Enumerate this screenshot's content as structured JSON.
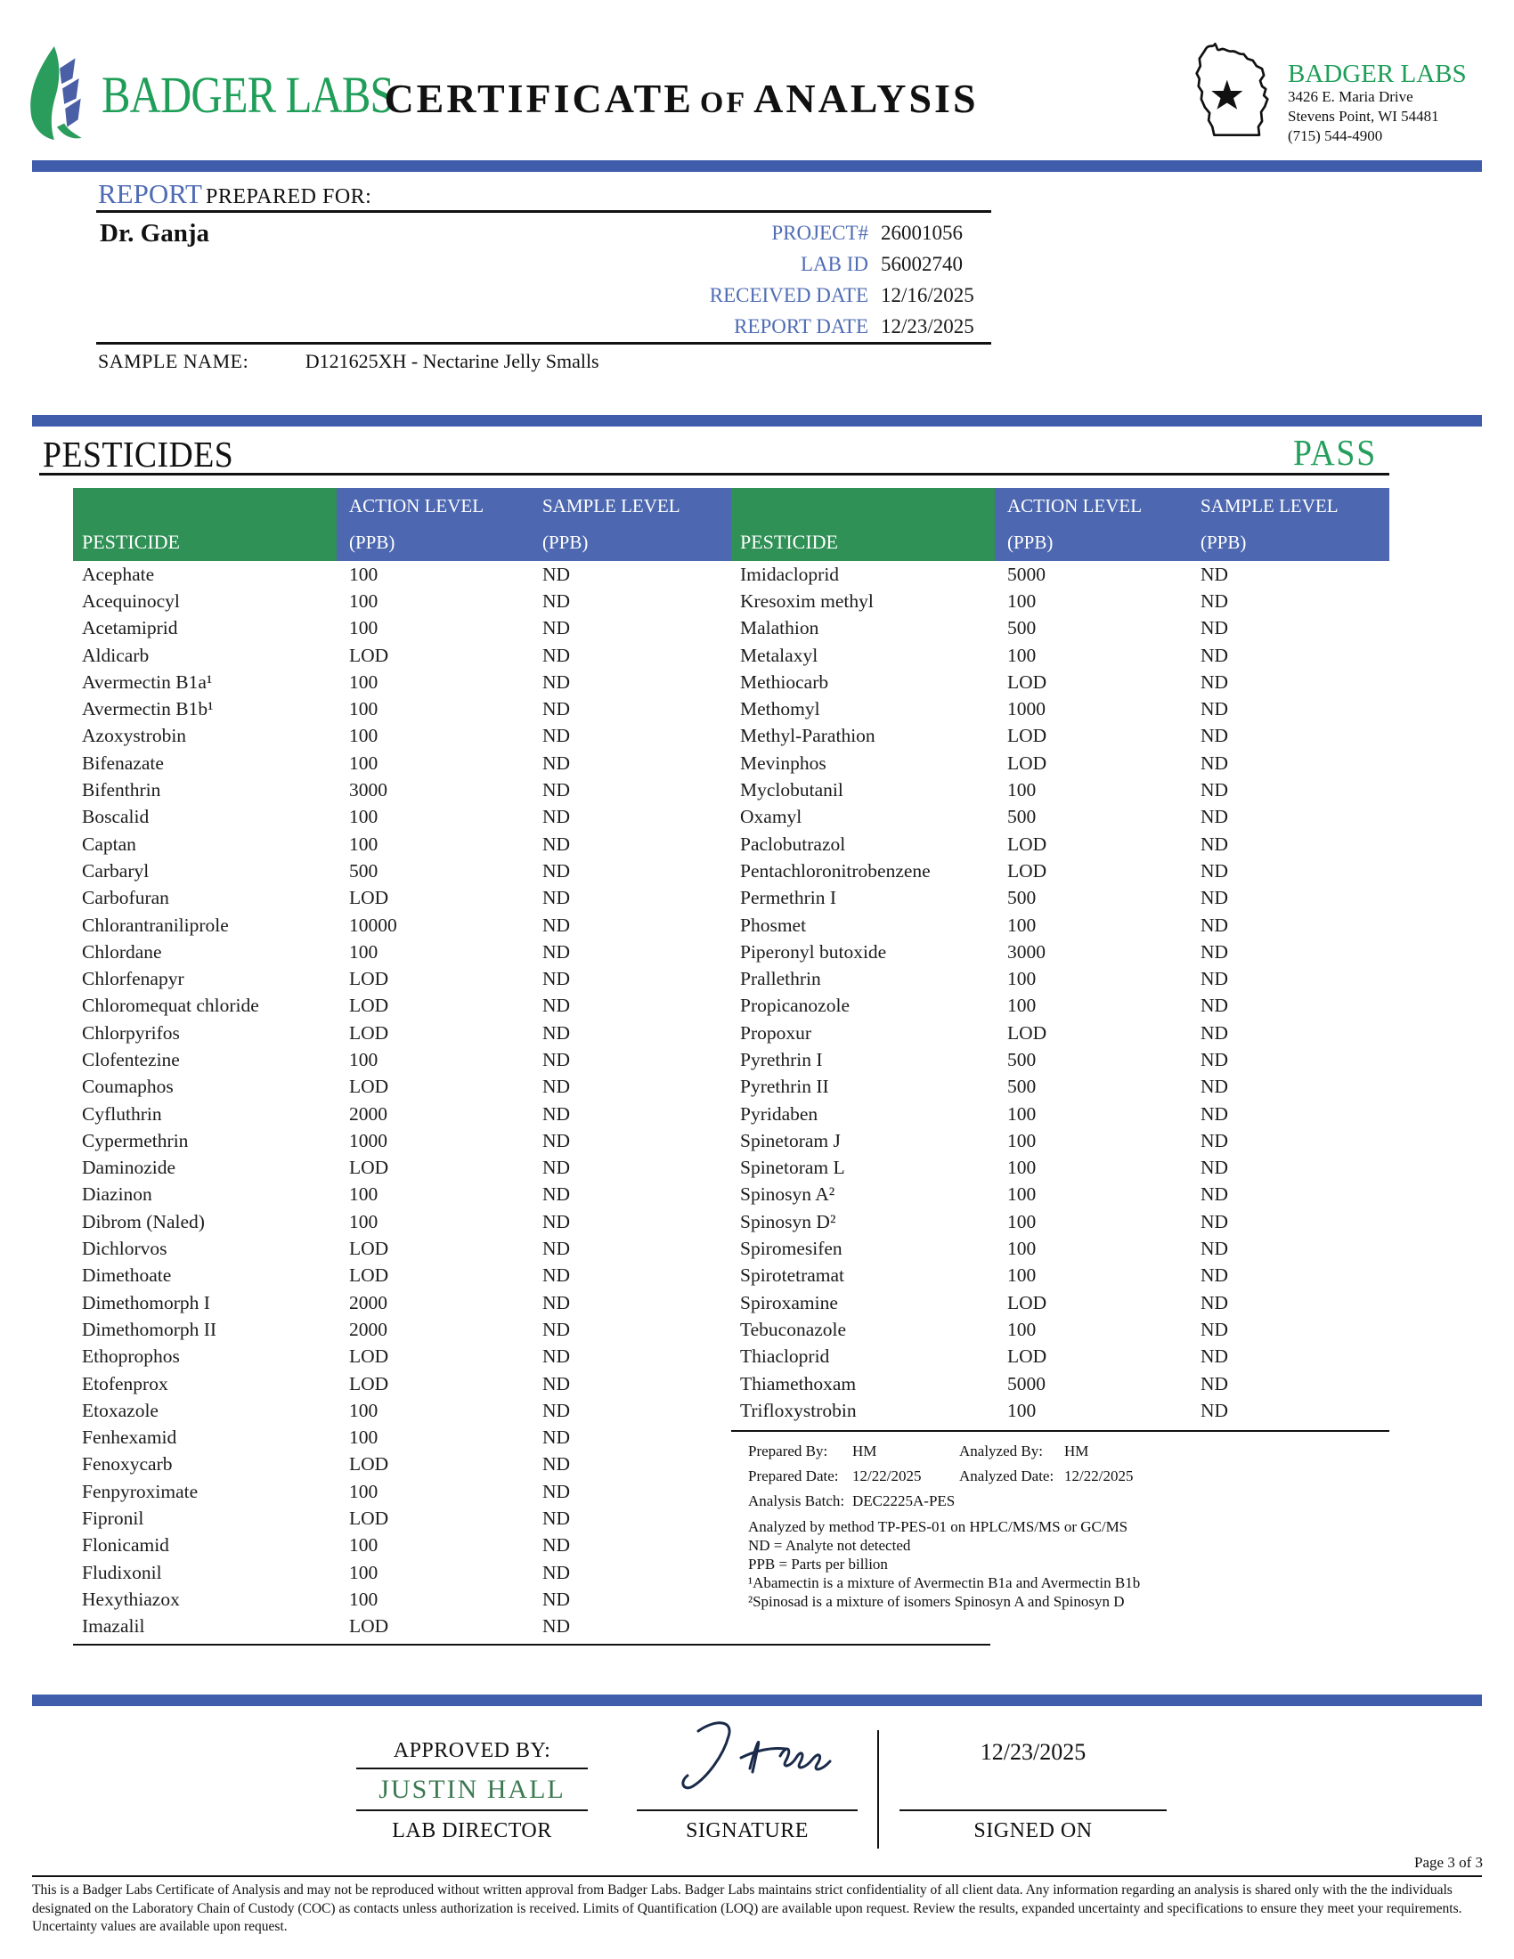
{
  "header": {
    "logo_text": "BADGER LABS",
    "title_word1": "CERTIFICATE",
    "title_word2": "OF",
    "title_word3": "ANALYSIS",
    "lab_info": {
      "name": "BADGER LABS",
      "address1": "3426 E. Maria Drive",
      "address2": "Stevens Point, WI 54481",
      "phone": "(715) 544-4900"
    }
  },
  "report": {
    "heading_blue": "REPORT",
    "heading_rest": "PREPARED FOR:",
    "client": "Dr. Ganja",
    "fields": [
      {
        "label": "PROJECT#",
        "value": "26001056"
      },
      {
        "label": "LAB ID",
        "value": "56002740"
      },
      {
        "label": "RECEIVED DATE",
        "value": "12/16/2025"
      },
      {
        "label": "REPORT DATE",
        "value": "12/23/2025"
      }
    ],
    "sample_label": "SAMPLE NAME:",
    "sample_name": "D121625XH - Nectarine Jelly Smalls"
  },
  "pesticides": {
    "section_title": "PESTICIDES",
    "result": "PASS",
    "headers": {
      "pesticide": "PESTICIDE",
      "action": "ACTION LEVEL",
      "sample": "SAMPLE LEVEL",
      "unit": "(PPB)"
    },
    "left_rows": [
      {
        "name": "Acephate",
        "action": "100",
        "sample": "ND"
      },
      {
        "name": "Acequinocyl",
        "action": "100",
        "sample": "ND"
      },
      {
        "name": "Acetamiprid",
        "action": "100",
        "sample": "ND"
      },
      {
        "name": "Aldicarb",
        "action": "LOD",
        "sample": "ND"
      },
      {
        "name": "Avermectin B1a¹",
        "action": "100",
        "sample": "ND"
      },
      {
        "name": "Avermectin B1b¹",
        "action": "100",
        "sample": "ND"
      },
      {
        "name": "Azoxystrobin",
        "action": "100",
        "sample": "ND"
      },
      {
        "name": "Bifenazate",
        "action": "100",
        "sample": "ND"
      },
      {
        "name": "Bifenthrin",
        "action": "3000",
        "sample": "ND"
      },
      {
        "name": "Boscalid",
        "action": "100",
        "sample": "ND"
      },
      {
        "name": "Captan",
        "action": "100",
        "sample": "ND"
      },
      {
        "name": "Carbaryl",
        "action": "500",
        "sample": "ND"
      },
      {
        "name": "Carbofuran",
        "action": "LOD",
        "sample": "ND"
      },
      {
        "name": "Chlorantraniliprole",
        "action": "10000",
        "sample": "ND"
      },
      {
        "name": "Chlordane",
        "action": "100",
        "sample": "ND"
      },
      {
        "name": "Chlorfenapyr",
        "action": "LOD",
        "sample": "ND"
      },
      {
        "name": "Chloromequat chloride",
        "action": "LOD",
        "sample": "ND"
      },
      {
        "name": "Chlorpyrifos",
        "action": "LOD",
        "sample": "ND"
      },
      {
        "name": "Clofentezine",
        "action": "100",
        "sample": "ND"
      },
      {
        "name": "Coumaphos",
        "action": "LOD",
        "sample": "ND"
      },
      {
        "name": "Cyfluthrin",
        "action": "2000",
        "sample": "ND"
      },
      {
        "name": "Cypermethrin",
        "action": "1000",
        "sample": "ND"
      },
      {
        "name": "Daminozide",
        "action": "LOD",
        "sample": "ND"
      },
      {
        "name": "Diazinon",
        "action": "100",
        "sample": "ND"
      },
      {
        "name": "Dibrom (Naled)",
        "action": "100",
        "sample": "ND"
      },
      {
        "name": "Dichlorvos",
        "action": "LOD",
        "sample": "ND"
      },
      {
        "name": "Dimethoate",
        "action": "LOD",
        "sample": "ND"
      },
      {
        "name": "Dimethomorph I",
        "action": "2000",
        "sample": "ND"
      },
      {
        "name": "Dimethomorph II",
        "action": "2000",
        "sample": "ND"
      },
      {
        "name": "Ethoprophos",
        "action": "LOD",
        "sample": "ND"
      },
      {
        "name": "Etofenprox",
        "action": "LOD",
        "sample": "ND"
      },
      {
        "name": "Etoxazole",
        "action": "100",
        "sample": "ND"
      },
      {
        "name": "Fenhexamid",
        "action": "100",
        "sample": "ND"
      },
      {
        "name": "Fenoxycarb",
        "action": "LOD",
        "sample": "ND"
      },
      {
        "name": "Fenpyroximate",
        "action": "100",
        "sample": "ND"
      },
      {
        "name": "Fipronil",
        "action": "LOD",
        "sample": "ND"
      },
      {
        "name": "Flonicamid",
        "action": "100",
        "sample": "ND"
      },
      {
        "name": "Fludixonil",
        "action": "100",
        "sample": "ND"
      },
      {
        "name": "Hexythiazox",
        "action": "100",
        "sample": "ND"
      },
      {
        "name": "Imazalil",
        "action": "LOD",
        "sample": "ND"
      }
    ],
    "right_rows": [
      {
        "name": "Imidacloprid",
        "action": "5000",
        "sample": "ND"
      },
      {
        "name": "Kresoxim methyl",
        "action": "100",
        "sample": "ND"
      },
      {
        "name": "Malathion",
        "action": "500",
        "sample": "ND"
      },
      {
        "name": "Metalaxyl",
        "action": "100",
        "sample": "ND"
      },
      {
        "name": "Methiocarb",
        "action": "LOD",
        "sample": "ND"
      },
      {
        "name": "Methomyl",
        "action": "1000",
        "sample": "ND"
      },
      {
        "name": "Methyl-Parathion",
        "action": "LOD",
        "sample": "ND"
      },
      {
        "name": "Mevinphos",
        "action": "LOD",
        "sample": "ND"
      },
      {
        "name": "Myclobutanil",
        "action": "100",
        "sample": "ND"
      },
      {
        "name": "Oxamyl",
        "action": "500",
        "sample": "ND"
      },
      {
        "name": "Paclobutrazol",
        "action": "LOD",
        "sample": "ND"
      },
      {
        "name": "Pentachloronitrobenzene",
        "action": "LOD",
        "sample": "ND"
      },
      {
        "name": "Permethrin I",
        "action": "500",
        "sample": "ND"
      },
      {
        "name": "Phosmet",
        "action": "100",
        "sample": "ND"
      },
      {
        "name": "Piperonyl butoxide",
        "action": "3000",
        "sample": "ND"
      },
      {
        "name": "Prallethrin",
        "action": "100",
        "sample": "ND"
      },
      {
        "name": "Propicanozole",
        "action": "100",
        "sample": "ND"
      },
      {
        "name": "Propoxur",
        "action": "LOD",
        "sample": "ND"
      },
      {
        "name": "Pyrethrin I",
        "action": "500",
        "sample": "ND"
      },
      {
        "name": "Pyrethrin II",
        "action": "500",
        "sample": "ND"
      },
      {
        "name": "Pyridaben",
        "action": "100",
        "sample": "ND"
      },
      {
        "name": "Spinetoram J",
        "action": "100",
        "sample": "ND"
      },
      {
        "name": "Spinetoram L",
        "action": "100",
        "sample": "ND"
      },
      {
        "name": "Spinosyn A²",
        "action": "100",
        "sample": "ND"
      },
      {
        "name": "Spinosyn D²",
        "action": "100",
        "sample": "ND"
      },
      {
        "name": "Spiromesifen",
        "action": "100",
        "sample": "ND"
      },
      {
        "name": "Spirotetramat",
        "action": "100",
        "sample": "ND"
      },
      {
        "name": "Spiroxamine",
        "action": "LOD",
        "sample": "ND"
      },
      {
        "name": "Tebuconazole",
        "action": "100",
        "sample": "ND"
      },
      {
        "name": "Thiacloprid",
        "action": "LOD",
        "sample": "ND"
      },
      {
        "name": "Thiamethoxam",
        "action": "5000",
        "sample": "ND"
      },
      {
        "name": "Trifloxystrobin",
        "action": "100",
        "sample": "ND"
      }
    ],
    "notes": {
      "prepared_by_label": "Prepared By:",
      "prepared_by": "HM",
      "analyzed_by_label": "Analyzed By:",
      "analyzed_by": "HM",
      "prepared_date_label": "Prepared Date:",
      "prepared_date": "12/22/2025",
      "analyzed_date_label": "Analyzed Date:",
      "analyzed_date": "12/22/2025",
      "batch_label": "Analysis Batch:",
      "batch": "DEC2225A-PES",
      "method_lines": [
        "Analyzed by method TP-PES-01 on HPLC/MS/MS or GC/MS",
        "ND = Analyte not detected",
        "PPB = Parts per billion",
        "¹Abamectin is a mixture of Avermectin B1a and Avermectin B1b",
        "²Spinosad is a mixture of isomers Spinosyn A and Spinosyn D"
      ]
    }
  },
  "footer": {
    "approved_by_label": "APPROVED BY:",
    "approver": "JUSTIN HALL",
    "approver_title": "LAB DIRECTOR",
    "signature_label": "SIGNATURE",
    "signed_on_label": "SIGNED ON",
    "signed_date": "12/23/2025",
    "page": "Page 3 of 3",
    "disclaimer": "This is a Badger Labs Certificate of Analysis and may not be reproduced without written approval from Badger Labs. Badger Labs maintains strict confidentiality of all client data. Any information regarding an analysis is shared only with the the individuals designated on the Laboratory Chain of Custody (COC) as contacts unless authorization is received. Limits of Quantification (LOQ) are available upon request. Review the results, expanded uncertainty and specifications to ensure they meet your requirements. Uncertainty values are available upon request."
  },
  "colors": {
    "brand_green": "#1f9e58",
    "table_green": "#2f9155",
    "table_blue": "#4d68b0",
    "bar_blue": "#3f5dab",
    "label_blue": "#4f6cb4",
    "pass_green": "#259f5d",
    "approver_green": "#3c7a52"
  }
}
